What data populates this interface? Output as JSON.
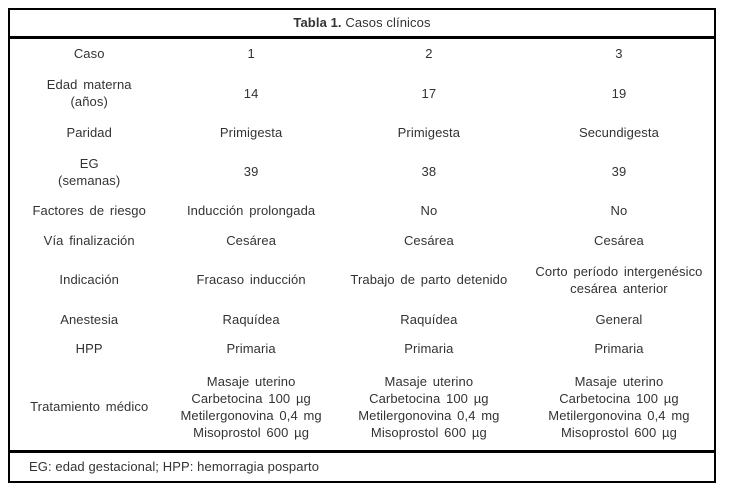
{
  "colors": {
    "background": "#ffffff",
    "text": "#333333",
    "border": "#000000"
  },
  "table": {
    "title": {
      "bold": "Tabla 1.",
      "normal": " Casos clínicos"
    },
    "rows": [
      {
        "name": "caso",
        "cells": [
          [
            "Caso"
          ],
          [
            "1"
          ],
          [
            "2"
          ],
          [
            "3"
          ]
        ]
      },
      {
        "name": "edad-materna",
        "cells": [
          [
            "Edad materna",
            "(años)"
          ],
          [
            "14"
          ],
          [
            "17"
          ],
          [
            "19"
          ]
        ]
      },
      {
        "name": "paridad",
        "cells": [
          [
            "Paridad"
          ],
          [
            "Primigesta"
          ],
          [
            "Primigesta"
          ],
          [
            "Secundigesta"
          ]
        ]
      },
      {
        "name": "eg-semanas",
        "cells": [
          [
            "EG",
            "(semanas)"
          ],
          [
            "39"
          ],
          [
            "38"
          ],
          [
            "39"
          ]
        ]
      },
      {
        "name": "factores-de-riesgo",
        "cells": [
          [
            "Factores de riesgo"
          ],
          [
            "Inducción prolongada"
          ],
          [
            "No"
          ],
          [
            "No"
          ]
        ]
      },
      {
        "name": "via-finalizacion",
        "cells": [
          [
            "Vía finalización"
          ],
          [
            "Cesárea"
          ],
          [
            "Cesárea"
          ],
          [
            "Cesárea"
          ]
        ]
      },
      {
        "name": "indicacion",
        "cells": [
          [
            "Indicación"
          ],
          [
            "Fracaso inducción"
          ],
          [
            "Trabajo de parto detenido"
          ],
          [
            "Corto período intergenésico",
            "cesárea anterior"
          ]
        ]
      },
      {
        "name": "anestesia",
        "cells": [
          [
            "Anestesia"
          ],
          [
            "Raquídea"
          ],
          [
            "Raquídea"
          ],
          [
            "General"
          ]
        ]
      },
      {
        "name": "hpp",
        "cells": [
          [
            "HPP"
          ],
          [
            "Primaria"
          ],
          [
            "Primaria"
          ],
          [
            "Primaria"
          ]
        ]
      },
      {
        "name": "tratamiento-medico",
        "cells": [
          [
            "Tratamiento médico"
          ],
          [
            "Masaje uterino",
            "Carbetocina 100 µg",
            "Metilergonovina 0,4 mg",
            "Misoprostol 600 µg"
          ],
          [
            "Masaje uterino",
            "Carbetocina 100 µg",
            "Metilergonovina 0,4 mg",
            "Misoprostol 600 µg"
          ],
          [
            "Masaje uterino",
            "Carbetocina 100 µg",
            "Metilergonovina 0,4 mg",
            "Misoprostol 600 µg"
          ]
        ]
      }
    ],
    "footnote": "EG: edad gestacional; HPP: hemorragia posparto"
  }
}
